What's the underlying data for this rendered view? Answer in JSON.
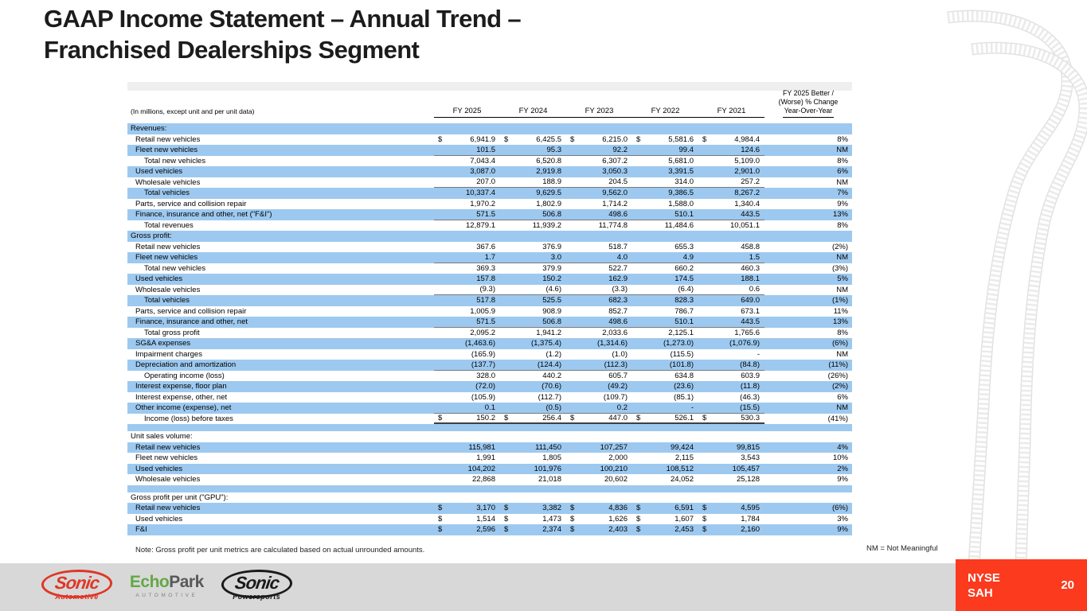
{
  "title": {
    "line1": "GAAP Income Statement – Annual Trend –",
    "line2": "Franchised Dealerships Segment"
  },
  "table": {
    "units_note": "(In millions, except unit and per unit data)",
    "columns": [
      "FY 2025",
      "FY 2024",
      "FY 2023",
      "FY 2022",
      "FY 2021"
    ],
    "change_header": [
      "FY 2025 Better /",
      "(Worse) % Change",
      "Year-Over-Year"
    ],
    "rows": [
      {
        "type": "section",
        "label": "Revenues:"
      },
      {
        "type": "data",
        "label": "Retail new vehicles",
        "indent": 1,
        "dollar": true,
        "values": [
          "6,941.9",
          "6,425.5",
          "6,215.0",
          "5,581.6",
          "4,984.4"
        ],
        "pct": "8%"
      },
      {
        "type": "data",
        "label": "Fleet new vehicles",
        "indent": 1,
        "values": [
          "101.5",
          "95.3",
          "92.2",
          "99.4",
          "124.6"
        ],
        "pct": "NM",
        "rule": "below"
      },
      {
        "type": "data",
        "label": "Total new vehicles",
        "indent": 2,
        "values": [
          "7,043.4",
          "6,520.8",
          "6,307.2",
          "5,681.0",
          "5,109.0"
        ],
        "pct": "8%"
      },
      {
        "type": "data",
        "label": "Used vehicles",
        "indent": 1,
        "values": [
          "3,087.0",
          "2,919.8",
          "3,050.3",
          "3,391.5",
          "2,901.0"
        ],
        "pct": "6%"
      },
      {
        "type": "data",
        "label": "Wholesale vehicles",
        "indent": 1,
        "values": [
          "207.0",
          "188.9",
          "204.5",
          "314.0",
          "257.2"
        ],
        "pct": "NM",
        "rule": "below"
      },
      {
        "type": "data",
        "label": "Total vehicles",
        "indent": 2,
        "values": [
          "10,337.4",
          "9,629.5",
          "9,562.0",
          "9,386.5",
          "8,267.2"
        ],
        "pct": "7%"
      },
      {
        "type": "data",
        "label": "Parts, service and collision repair",
        "indent": 1,
        "values": [
          "1,970.2",
          "1,802.9",
          "1,714.2",
          "1,588.0",
          "1,340.4"
        ],
        "pct": "9%"
      },
      {
        "type": "data",
        "label": "Finance, insurance and other, net (\"F&I\")",
        "indent": 1,
        "values": [
          "571.5",
          "506.8",
          "498.6",
          "510.1",
          "443.5"
        ],
        "pct": "13%",
        "rule": "below"
      },
      {
        "type": "data",
        "label": "Total revenues",
        "indent": 2,
        "values": [
          "12,879.1",
          "11,939.2",
          "11,774.8",
          "11,484.6",
          "10,051.1"
        ],
        "pct": "8%"
      },
      {
        "type": "section",
        "label": "Gross profit:"
      },
      {
        "type": "data",
        "label": "Retail new vehicles",
        "indent": 1,
        "values": [
          "367.6",
          "376.9",
          "518.7",
          "655.3",
          "458.8"
        ],
        "pct": "(2%)"
      },
      {
        "type": "data",
        "label": "Fleet new vehicles",
        "indent": 1,
        "values": [
          "1.7",
          "3.0",
          "4.0",
          "4.9",
          "1.5"
        ],
        "pct": "NM",
        "rule": "below"
      },
      {
        "type": "data",
        "label": "Total new vehicles",
        "indent": 2,
        "values": [
          "369.3",
          "379.9",
          "522.7",
          "660.2",
          "460.3"
        ],
        "pct": "(3%)"
      },
      {
        "type": "data",
        "label": "Used vehicles",
        "indent": 1,
        "values": [
          "157.8",
          "150.2",
          "162.9",
          "174.5",
          "188.1"
        ],
        "pct": "5%"
      },
      {
        "type": "data",
        "label": "Wholesale vehicles",
        "indent": 1,
        "values": [
          "(9.3)",
          "(4.6)",
          "(3.3)",
          "(6.4)",
          "0.6"
        ],
        "pct": "NM",
        "rule": "below"
      },
      {
        "type": "data",
        "label": "Total vehicles",
        "indent": 2,
        "values": [
          "517.8",
          "525.5",
          "682.3",
          "828.3",
          "649.0"
        ],
        "pct": "(1%)"
      },
      {
        "type": "data",
        "label": "Parts, service and collision repair",
        "indent": 1,
        "values": [
          "1,005.9",
          "908.9",
          "852.7",
          "786.7",
          "673.1"
        ],
        "pct": "11%"
      },
      {
        "type": "data",
        "label": "Finance, insurance and other, net",
        "indent": 1,
        "values": [
          "571.5",
          "506.8",
          "498.6",
          "510.1",
          "443.5"
        ],
        "pct": "13%",
        "rule": "below"
      },
      {
        "type": "data",
        "label": "Total gross profit",
        "indent": 2,
        "values": [
          "2,095.2",
          "1,941.2",
          "2,033.6",
          "2,125.1",
          "1,765.6"
        ],
        "pct": "8%"
      },
      {
        "type": "data",
        "label": "SG&A expenses",
        "indent": 1,
        "values": [
          "(1,463.6)",
          "(1,375.4)",
          "(1,314.6)",
          "(1,273.0)",
          "(1,076.9)"
        ],
        "pct": "(6%)"
      },
      {
        "type": "data",
        "label": "Impairment charges",
        "indent": 1,
        "values": [
          "(165.9)",
          "(1.2)",
          "(1.0)",
          "(115.5)",
          "-"
        ],
        "pct": "NM"
      },
      {
        "type": "data",
        "label": "Depreciation and amortization",
        "indent": 1,
        "values": [
          "(137.7)",
          "(124.4)",
          "(112.3)",
          "(101.8)",
          "(84.8)"
        ],
        "pct": "(11%)",
        "rule": "below"
      },
      {
        "type": "data",
        "label": "Operating income (loss)",
        "indent": 2,
        "values": [
          "328.0",
          "440.2",
          "605.7",
          "634.8",
          "603.9"
        ],
        "pct": "(26%)"
      },
      {
        "type": "data",
        "label": "Interest expense, floor plan",
        "indent": 1,
        "values": [
          "(72.0)",
          "(70.6)",
          "(49.2)",
          "(23.6)",
          "(11.8)"
        ],
        "pct": "(2%)"
      },
      {
        "type": "data",
        "label": "Interest expense, other, net",
        "indent": 1,
        "values": [
          "(105.9)",
          "(112.7)",
          "(109.7)",
          "(85.1)",
          "(46.3)"
        ],
        "pct": "6%"
      },
      {
        "type": "data",
        "label": "Other income (expense), net",
        "indent": 1,
        "values": [
          "0.1",
          "(0.5)",
          "0.2",
          "-",
          "(15.5)"
        ],
        "pct": "NM",
        "rule": "below"
      },
      {
        "type": "data",
        "label": "Income (loss) before taxes",
        "indent": 2,
        "dollar": true,
        "values": [
          "150.2",
          "256.4",
          "447.0",
          "526.1",
          "530.3"
        ],
        "pct": "(41%)",
        "rule": "thick"
      },
      {
        "type": "spacer"
      },
      {
        "type": "section",
        "label": "Unit sales volume:"
      },
      {
        "type": "data",
        "label": "Retail new vehicles",
        "indent": 1,
        "values": [
          "115,981",
          "111,450",
          "107,257",
          "99,424",
          "99,815"
        ],
        "pct": "4%"
      },
      {
        "type": "data",
        "label": "Fleet new vehicles",
        "indent": 1,
        "values": [
          "1,991",
          "1,805",
          "2,000",
          "2,115",
          "3,543"
        ],
        "pct": "10%"
      },
      {
        "type": "data",
        "label": "Used vehicles",
        "indent": 1,
        "values": [
          "104,202",
          "101,976",
          "100,210",
          "108,512",
          "105,457"
        ],
        "pct": "2%"
      },
      {
        "type": "data",
        "label": "Wholesale vehicles",
        "indent": 1,
        "values": [
          "22,868",
          "21,018",
          "20,602",
          "24,052",
          "25,128"
        ],
        "pct": "9%"
      },
      {
        "type": "spacer"
      },
      {
        "type": "section",
        "label": "Gross profit per unit (\"GPU\"):"
      },
      {
        "type": "data",
        "label": "Retail new vehicles",
        "indent": 1,
        "dollar": true,
        "values": [
          "3,170",
          "3,382",
          "4,836",
          "6,591",
          "4,595"
        ],
        "pct": "(6%)"
      },
      {
        "type": "data",
        "label": "Used vehicles",
        "indent": 1,
        "dollar": true,
        "values": [
          "1,514",
          "1,473",
          "1,626",
          "1,607",
          "1,784"
        ],
        "pct": "3%"
      },
      {
        "type": "data",
        "label": "F&I",
        "indent": 1,
        "dollar": true,
        "values": [
          "2,596",
          "2,374",
          "2,403",
          "2,453",
          "2,160"
        ],
        "pct": "9%"
      }
    ]
  },
  "notes": {
    "left": "Note: Gross profit per unit metrics are calculated based on actual unrounded amounts.",
    "right": "NM = Not Meaningful"
  },
  "footer": {
    "logos": [
      {
        "name": "Sonic",
        "sub": "Automotive"
      },
      {
        "part1": "Echo",
        "part2": "Park",
        "sub": "AUTOMOTIVE"
      },
      {
        "name": "Sonic",
        "sub": "Powersports"
      }
    ],
    "ticker_line1": "NYSE",
    "ticker_line2": "SAH",
    "page": "20"
  },
  "colors": {
    "row_blue": "#9DC9F0",
    "accent_red": "#FB3A1E",
    "sonic_red": "#DE3726",
    "echopark_green": "#63A844",
    "footer_gray": "#D8D8D8",
    "band_gray": "#EFEFEF"
  }
}
